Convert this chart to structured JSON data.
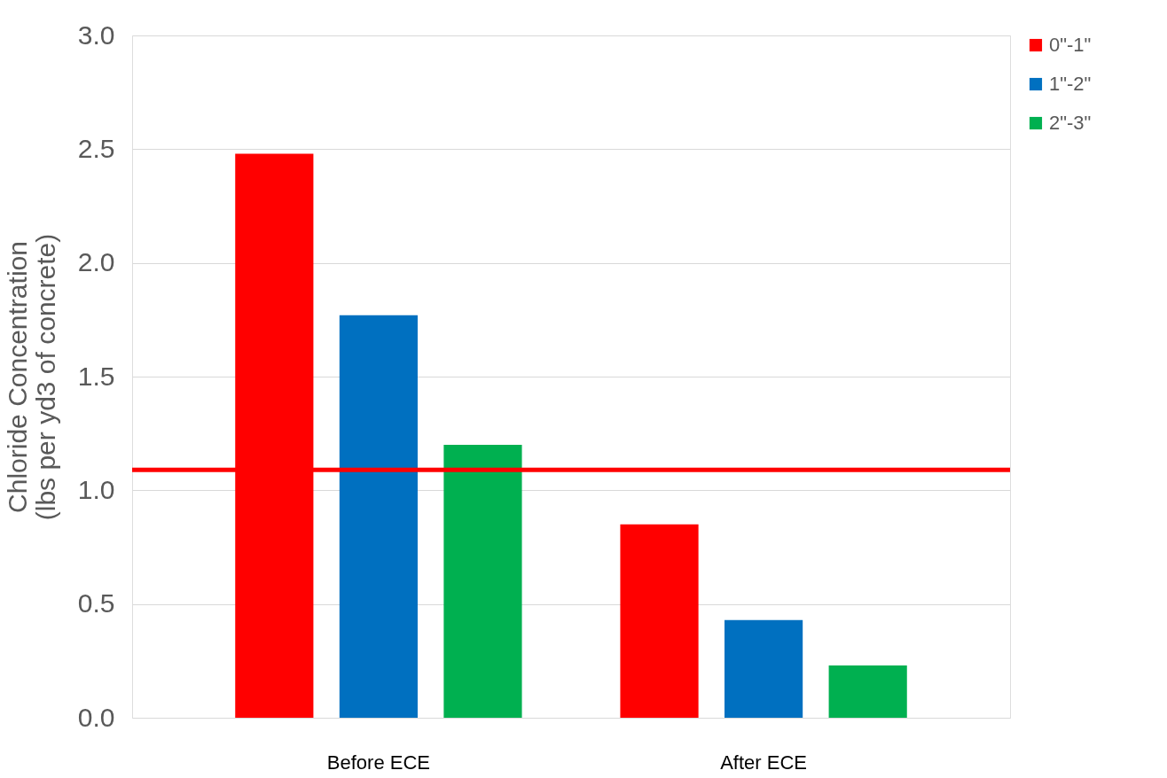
{
  "chart_data": {
    "type": "bar",
    "ylabel": "Chloride Concentration (lbs per yd3 of concrete)",
    "categories": [
      "Before ECE",
      "After ECE"
    ],
    "series": [
      {
        "name": "0\"-1\"",
        "color": "#ff0000",
        "values": [
          2.48,
          0.85
        ]
      },
      {
        "name": "1\"-2\"",
        "color": "#0070c0",
        "values": [
          1.77,
          0.43
        ]
      },
      {
        "name": "2\"-3\"",
        "color": "#00b050",
        "values": [
          1.2,
          0.23
        ]
      }
    ],
    "ylim": [
      0,
      3
    ],
    "yticks": [
      {
        "value": 0,
        "label": "0.0"
      },
      {
        "value": 0.5,
        "label": "0.5"
      },
      {
        "value": 1,
        "label": "1.0"
      },
      {
        "value": 1.5,
        "label": "1.5"
      },
      {
        "value": 2,
        "label": "2.0"
      },
      {
        "value": 2.5,
        "label": "2.5"
      },
      {
        "value": 3,
        "label": "3.0"
      }
    ],
    "ref_lines": [
      {
        "axis": "y",
        "value": 1.09,
        "color": "#ff0000"
      }
    ],
    "grid": "y",
    "legend": "right"
  }
}
